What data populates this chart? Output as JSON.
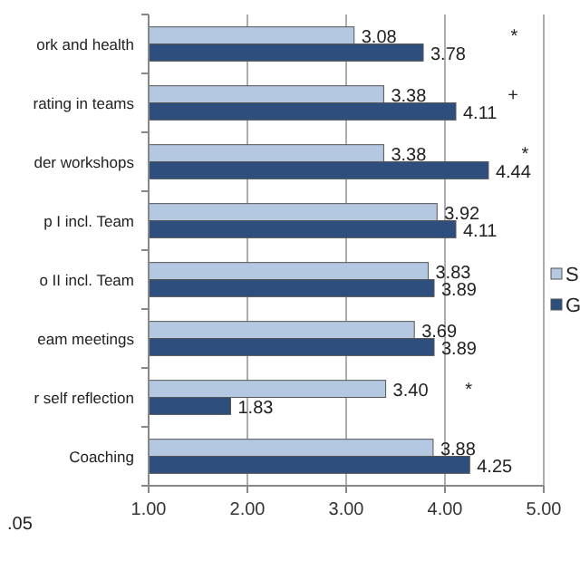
{
  "chart_data": {
    "type": "bar",
    "orientation": "horizontal",
    "categories": [
      "ork and health",
      "rating in teams",
      "der workshops",
      "p I incl. Team",
      "o II incl. Team",
      "eam meetings",
      "r self reflection",
      "Coaching"
    ],
    "series": [
      {
        "name": "S",
        "color": "#b4c8e2",
        "values": [
          3.08,
          3.38,
          3.38,
          3.92,
          3.83,
          3.69,
          3.4,
          3.88
        ],
        "value_labels": [
          "3.08",
          "3.38",
          "3.38",
          "3.92",
          "3.83",
          "3.69",
          "3.40",
          "3.88"
        ]
      },
      {
        "name": "G",
        "color": "#2e4f7e",
        "values": [
          3.78,
          4.11,
          4.44,
          4.11,
          3.89,
          3.89,
          1.83,
          4.25
        ],
        "value_labels": [
          "3.78",
          "4.11",
          "4.44",
          "4.11",
          "3.89",
          "3.89",
          "1.83",
          "4.25"
        ]
      }
    ],
    "xlim": [
      1,
      5
    ],
    "xticks": [
      {
        "value": 1,
        "label": "1.00"
      },
      {
        "value": 2,
        "label": "2.00"
      },
      {
        "value": 3,
        "label": "3.00"
      },
      {
        "value": 4,
        "label": "4.00"
      },
      {
        "value": 5,
        "label": "5.00"
      }
    ],
    "grid": "x",
    "legend": "right",
    "annotations": [
      "*",
      "+",
      "*",
      "*",
      ".05"
    ]
  }
}
